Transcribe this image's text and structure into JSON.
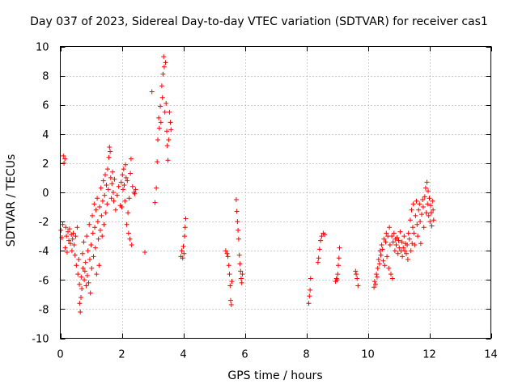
{
  "chart_data": {
    "type": "scatter",
    "title": "Day 037 of 2023, Sidereal Day-to-day VTEC variation (SDTVAR) for receiver cas1",
    "xlabel": "GPS time / hours",
    "ylabel": "SDTVAR / TECUs",
    "xlim": [
      0,
      14
    ],
    "ylim": [
      -10,
      10
    ],
    "xticks": [
      0,
      2,
      4,
      6,
      8,
      10,
      12,
      14
    ],
    "yticks": [
      -10,
      -8,
      -6,
      -4,
      -2,
      0,
      2,
      4,
      6,
      8,
      10
    ],
    "grid": true,
    "marker": "+",
    "color": "#ff0000",
    "series": [
      {
        "name": "SDTVAR",
        "points": [
          [
            0.02,
            -2.6
          ],
          [
            0.05,
            -3.1
          ],
          [
            0.08,
            -2.2
          ],
          [
            0.1,
            2.5
          ],
          [
            0.12,
            2.0
          ],
          [
            0.15,
            2.3
          ],
          [
            0.16,
            -3.8
          ],
          [
            0.18,
            -2.4
          ],
          [
            0.2,
            -3.0
          ],
          [
            0.22,
            -4.1
          ],
          [
            0.25,
            -2.7
          ],
          [
            0.28,
            -3.3
          ],
          [
            0.3,
            -2.5
          ],
          [
            0.33,
            -3.5
          ],
          [
            0.36,
            -2.9
          ],
          [
            0.38,
            -4.0
          ],
          [
            0.4,
            -3.2
          ],
          [
            0.42,
            -2.8
          ],
          [
            0.45,
            -3.6
          ],
          [
            0.48,
            -4.3
          ],
          [
            0.5,
            -3.0
          ],
          [
            0.52,
            -5.0
          ],
          [
            0.55,
            -2.4
          ],
          [
            0.57,
            -5.6
          ],
          [
            0.6,
            -4.6
          ],
          [
            0.62,
            -6.3
          ],
          [
            0.63,
            -7.6
          ],
          [
            0.65,
            -8.2
          ],
          [
            0.67,
            -7.2
          ],
          [
            0.68,
            -5.8
          ],
          [
            0.7,
            -6.6
          ],
          [
            0.72,
            -4.2
          ],
          [
            0.74,
            -5.2
          ],
          [
            0.76,
            -3.4
          ],
          [
            0.78,
            -6.0
          ],
          [
            0.8,
            -5.4
          ],
          [
            0.82,
            -4.8
          ],
          [
            0.84,
            -6.4
          ],
          [
            0.86,
            -3.0
          ],
          [
            0.88,
            -5.7
          ],
          [
            0.9,
            -4.0
          ],
          [
            0.92,
            -6.2
          ],
          [
            0.94,
            -2.2
          ],
          [
            0.96,
            -4.6
          ],
          [
            0.98,
            -6.9
          ],
          [
            1.0,
            -3.6
          ],
          [
            1.02,
            -5.2
          ],
          [
            1.04,
            -1.6
          ],
          [
            1.06,
            -2.8
          ],
          [
            1.08,
            -4.4
          ],
          [
            1.1,
            -0.8
          ],
          [
            1.12,
            -2.4
          ],
          [
            1.14,
            -3.8
          ],
          [
            1.16,
            -1.2
          ],
          [
            1.18,
            -5.6
          ],
          [
            1.2,
            -0.4
          ],
          [
            1.22,
            -2.0
          ],
          [
            1.24,
            -3.2
          ],
          [
            1.26,
            -5.0
          ],
          [
            1.28,
            -1.0
          ],
          [
            1.3,
            -2.6
          ],
          [
            1.32,
            0.3
          ],
          [
            1.34,
            -1.6
          ],
          [
            1.36,
            -3.0
          ],
          [
            1.38,
            -0.6
          ],
          [
            1.4,
            0.8
          ],
          [
            1.42,
            -2.2
          ],
          [
            1.44,
            -0.2
          ],
          [
            1.46,
            1.2
          ],
          [
            1.48,
            -1.4
          ],
          [
            1.5,
            0.5
          ],
          [
            1.52,
            -0.8
          ],
          [
            1.54,
            1.6
          ],
          [
            1.56,
            0.2
          ],
          [
            1.58,
            2.4
          ],
          [
            1.6,
            3.1
          ],
          [
            1.62,
            2.8
          ],
          [
            1.64,
            1.0
          ],
          [
            1.66,
            -0.4
          ],
          [
            1.68,
            0.6
          ],
          [
            1.7,
            1.4
          ],
          [
            1.72,
            0.0
          ],
          [
            1.74,
            -0.6
          ],
          [
            1.76,
            0.9
          ],
          [
            1.8,
            -1.2
          ],
          [
            1.85,
            -0.2
          ],
          [
            1.9,
            0.4
          ],
          [
            1.95,
            -0.9
          ],
          [
            1.98,
            0.7
          ],
          [
            2.0,
            -1.0
          ],
          [
            2.02,
            1.2
          ],
          [
            2.04,
            0.2
          ],
          [
            2.06,
            1.6
          ],
          [
            2.08,
            0.5
          ],
          [
            2.1,
            -0.6
          ],
          [
            2.12,
            1.9
          ],
          [
            2.14,
            1.0
          ],
          [
            2.16,
            -2.2
          ],
          [
            2.18,
            0.8
          ],
          [
            2.2,
            -1.4
          ],
          [
            2.22,
            -2.8
          ],
          [
            2.24,
            -0.4
          ],
          [
            2.26,
            -3.2
          ],
          [
            2.28,
            1.3
          ],
          [
            2.3,
            2.3
          ],
          [
            2.32,
            -3.6
          ],
          [
            2.35,
            0.4
          ],
          [
            2.4,
            0.0
          ],
          [
            2.42,
            -0.1
          ],
          [
            2.45,
            0.2
          ],
          [
            2.75,
            -4.1
          ],
          [
            2.98,
            6.9
          ],
          [
            3.08,
            -0.7
          ],
          [
            3.12,
            0.3
          ],
          [
            3.15,
            2.1
          ],
          [
            3.17,
            3.6
          ],
          [
            3.2,
            5.1
          ],
          [
            3.22,
            4.4
          ],
          [
            3.25,
            5.9
          ],
          [
            3.27,
            4.8
          ],
          [
            3.3,
            7.3
          ],
          [
            3.32,
            6.5
          ],
          [
            3.34,
            8.1
          ],
          [
            3.36,
            9.3
          ],
          [
            3.38,
            8.6
          ],
          [
            3.4,
            5.5
          ],
          [
            3.42,
            8.9
          ],
          [
            3.44,
            6.1
          ],
          [
            3.46,
            4.2
          ],
          [
            3.48,
            3.2
          ],
          [
            3.5,
            2.2
          ],
          [
            3.52,
            3.6
          ],
          [
            3.55,
            5.5
          ],
          [
            3.58,
            4.8
          ],
          [
            3.6,
            4.3
          ],
          [
            3.92,
            -4.4
          ],
          [
            3.95,
            -4.0
          ],
          [
            3.98,
            -4.5
          ],
          [
            4.0,
            -3.7
          ],
          [
            4.02,
            -4.2
          ],
          [
            4.04,
            -3.0
          ],
          [
            4.06,
            -2.4
          ],
          [
            4.08,
            -1.8
          ],
          [
            5.38,
            -4.0
          ],
          [
            5.42,
            -4.2
          ],
          [
            5.45,
            -4.4
          ],
          [
            5.48,
            -5.0
          ],
          [
            5.5,
            -5.6
          ],
          [
            5.52,
            -6.4
          ],
          [
            5.54,
            -7.4
          ],
          [
            5.56,
            -7.7
          ],
          [
            5.58,
            -6.1
          ],
          [
            5.72,
            -0.5
          ],
          [
            5.74,
            -1.3
          ],
          [
            5.76,
            -2.0
          ],
          [
            5.78,
            -2.6
          ],
          [
            5.8,
            -3.2
          ],
          [
            5.82,
            -4.3
          ],
          [
            5.84,
            -4.9
          ],
          [
            5.86,
            -5.4
          ],
          [
            5.88,
            -5.9
          ],
          [
            5.9,
            -6.2
          ],
          [
            5.92,
            -5.6
          ],
          [
            8.08,
            -7.6
          ],
          [
            8.1,
            -7.1
          ],
          [
            8.12,
            -6.7
          ],
          [
            8.14,
            -5.9
          ],
          [
            8.38,
            -4.8
          ],
          [
            8.4,
            -4.5
          ],
          [
            8.43,
            -3.9
          ],
          [
            8.46,
            -3.3
          ],
          [
            8.5,
            -3.0
          ],
          [
            8.55,
            -2.8
          ],
          [
            8.6,
            -2.9
          ],
          [
            8.95,
            -6.1
          ],
          [
            8.98,
            -5.9
          ],
          [
            9.0,
            -6.0
          ],
          [
            9.02,
            -5.6
          ],
          [
            9.04,
            -5.0
          ],
          [
            9.06,
            -4.5
          ],
          [
            9.08,
            -3.8
          ],
          [
            9.6,
            -5.4
          ],
          [
            9.62,
            -5.6
          ],
          [
            9.65,
            -5.9
          ],
          [
            9.68,
            -6.4
          ],
          [
            10.2,
            -6.5
          ],
          [
            10.22,
            -6.1
          ],
          [
            10.25,
            -6.3
          ],
          [
            10.28,
            -5.6
          ],
          [
            10.3,
            -5.8
          ],
          [
            10.32,
            -5.2
          ],
          [
            10.35,
            -4.6
          ],
          [
            10.38,
            -4.9
          ],
          [
            10.4,
            -4.0
          ],
          [
            10.42,
            -4.3
          ],
          [
            10.45,
            -3.6
          ],
          [
            10.48,
            -3.9
          ],
          [
            10.5,
            -4.7
          ],
          [
            10.52,
            -3.2
          ],
          [
            10.55,
            -5.0
          ],
          [
            10.58,
            -3.4
          ],
          [
            10.6,
            -2.8
          ],
          [
            10.62,
            -4.4
          ],
          [
            10.65,
            -3.0
          ],
          [
            10.68,
            -5.2
          ],
          [
            10.7,
            -2.4
          ],
          [
            10.72,
            -3.6
          ],
          [
            10.75,
            -5.6
          ],
          [
            10.78,
            -3.0
          ],
          [
            10.8,
            -5.9
          ],
          [
            10.82,
            -3.4
          ],
          [
            10.85,
            -2.8
          ],
          [
            10.88,
            -4.0
          ],
          [
            10.9,
            -3.2
          ],
          [
            10.92,
            -3.6
          ],
          [
            10.95,
            -3.1
          ],
          [
            10.98,
            -4.2
          ],
          [
            11.0,
            -3.3
          ],
          [
            11.02,
            -3.8
          ],
          [
            11.05,
            -2.7
          ],
          [
            11.08,
            -4.0
          ],
          [
            11.1,
            -3.4
          ],
          [
            11.12,
            -4.4
          ],
          [
            11.15,
            -3.8
          ],
          [
            11.18,
            -3.0
          ],
          [
            11.2,
            -4.0
          ],
          [
            11.22,
            -3.5
          ],
          [
            11.25,
            -4.2
          ],
          [
            11.28,
            -3.6
          ],
          [
            11.3,
            -4.6
          ],
          [
            11.32,
            -2.8
          ],
          [
            11.35,
            -3.2
          ],
          [
            11.38,
            -1.9
          ],
          [
            11.4,
            -4.0
          ],
          [
            11.42,
            -1.2
          ],
          [
            11.44,
            -3.5
          ],
          [
            11.46,
            -2.4
          ],
          [
            11.48,
            -0.8
          ],
          [
            11.5,
            -2.8
          ],
          [
            11.52,
            -3.6
          ],
          [
            11.55,
            -1.6
          ],
          [
            11.58,
            -0.6
          ],
          [
            11.6,
            -2.2
          ],
          [
            11.62,
            -3.0
          ],
          [
            11.65,
            -1.2
          ],
          [
            11.68,
            -0.8
          ],
          [
            11.7,
            -2.0
          ],
          [
            11.72,
            -3.5
          ],
          [
            11.75,
            -1.5
          ],
          [
            11.78,
            -0.5
          ],
          [
            11.8,
            -1.0
          ],
          [
            11.82,
            -2.4
          ],
          [
            11.85,
            -0.3
          ],
          [
            11.88,
            0.3
          ],
          [
            11.9,
            -1.4
          ],
          [
            11.92,
            0.7
          ],
          [
            11.94,
            -0.8
          ],
          [
            11.96,
            0.1
          ],
          [
            11.98,
            -1.6
          ],
          [
            12.0,
            -0.4
          ],
          [
            12.02,
            -2.0
          ],
          [
            12.04,
            -0.9
          ],
          [
            12.06,
            -1.4
          ],
          [
            12.08,
            -2.3
          ],
          [
            12.1,
            -0.6
          ],
          [
            12.12,
            -1.2
          ],
          [
            12.14,
            -1.9
          ]
        ]
      }
    ]
  }
}
